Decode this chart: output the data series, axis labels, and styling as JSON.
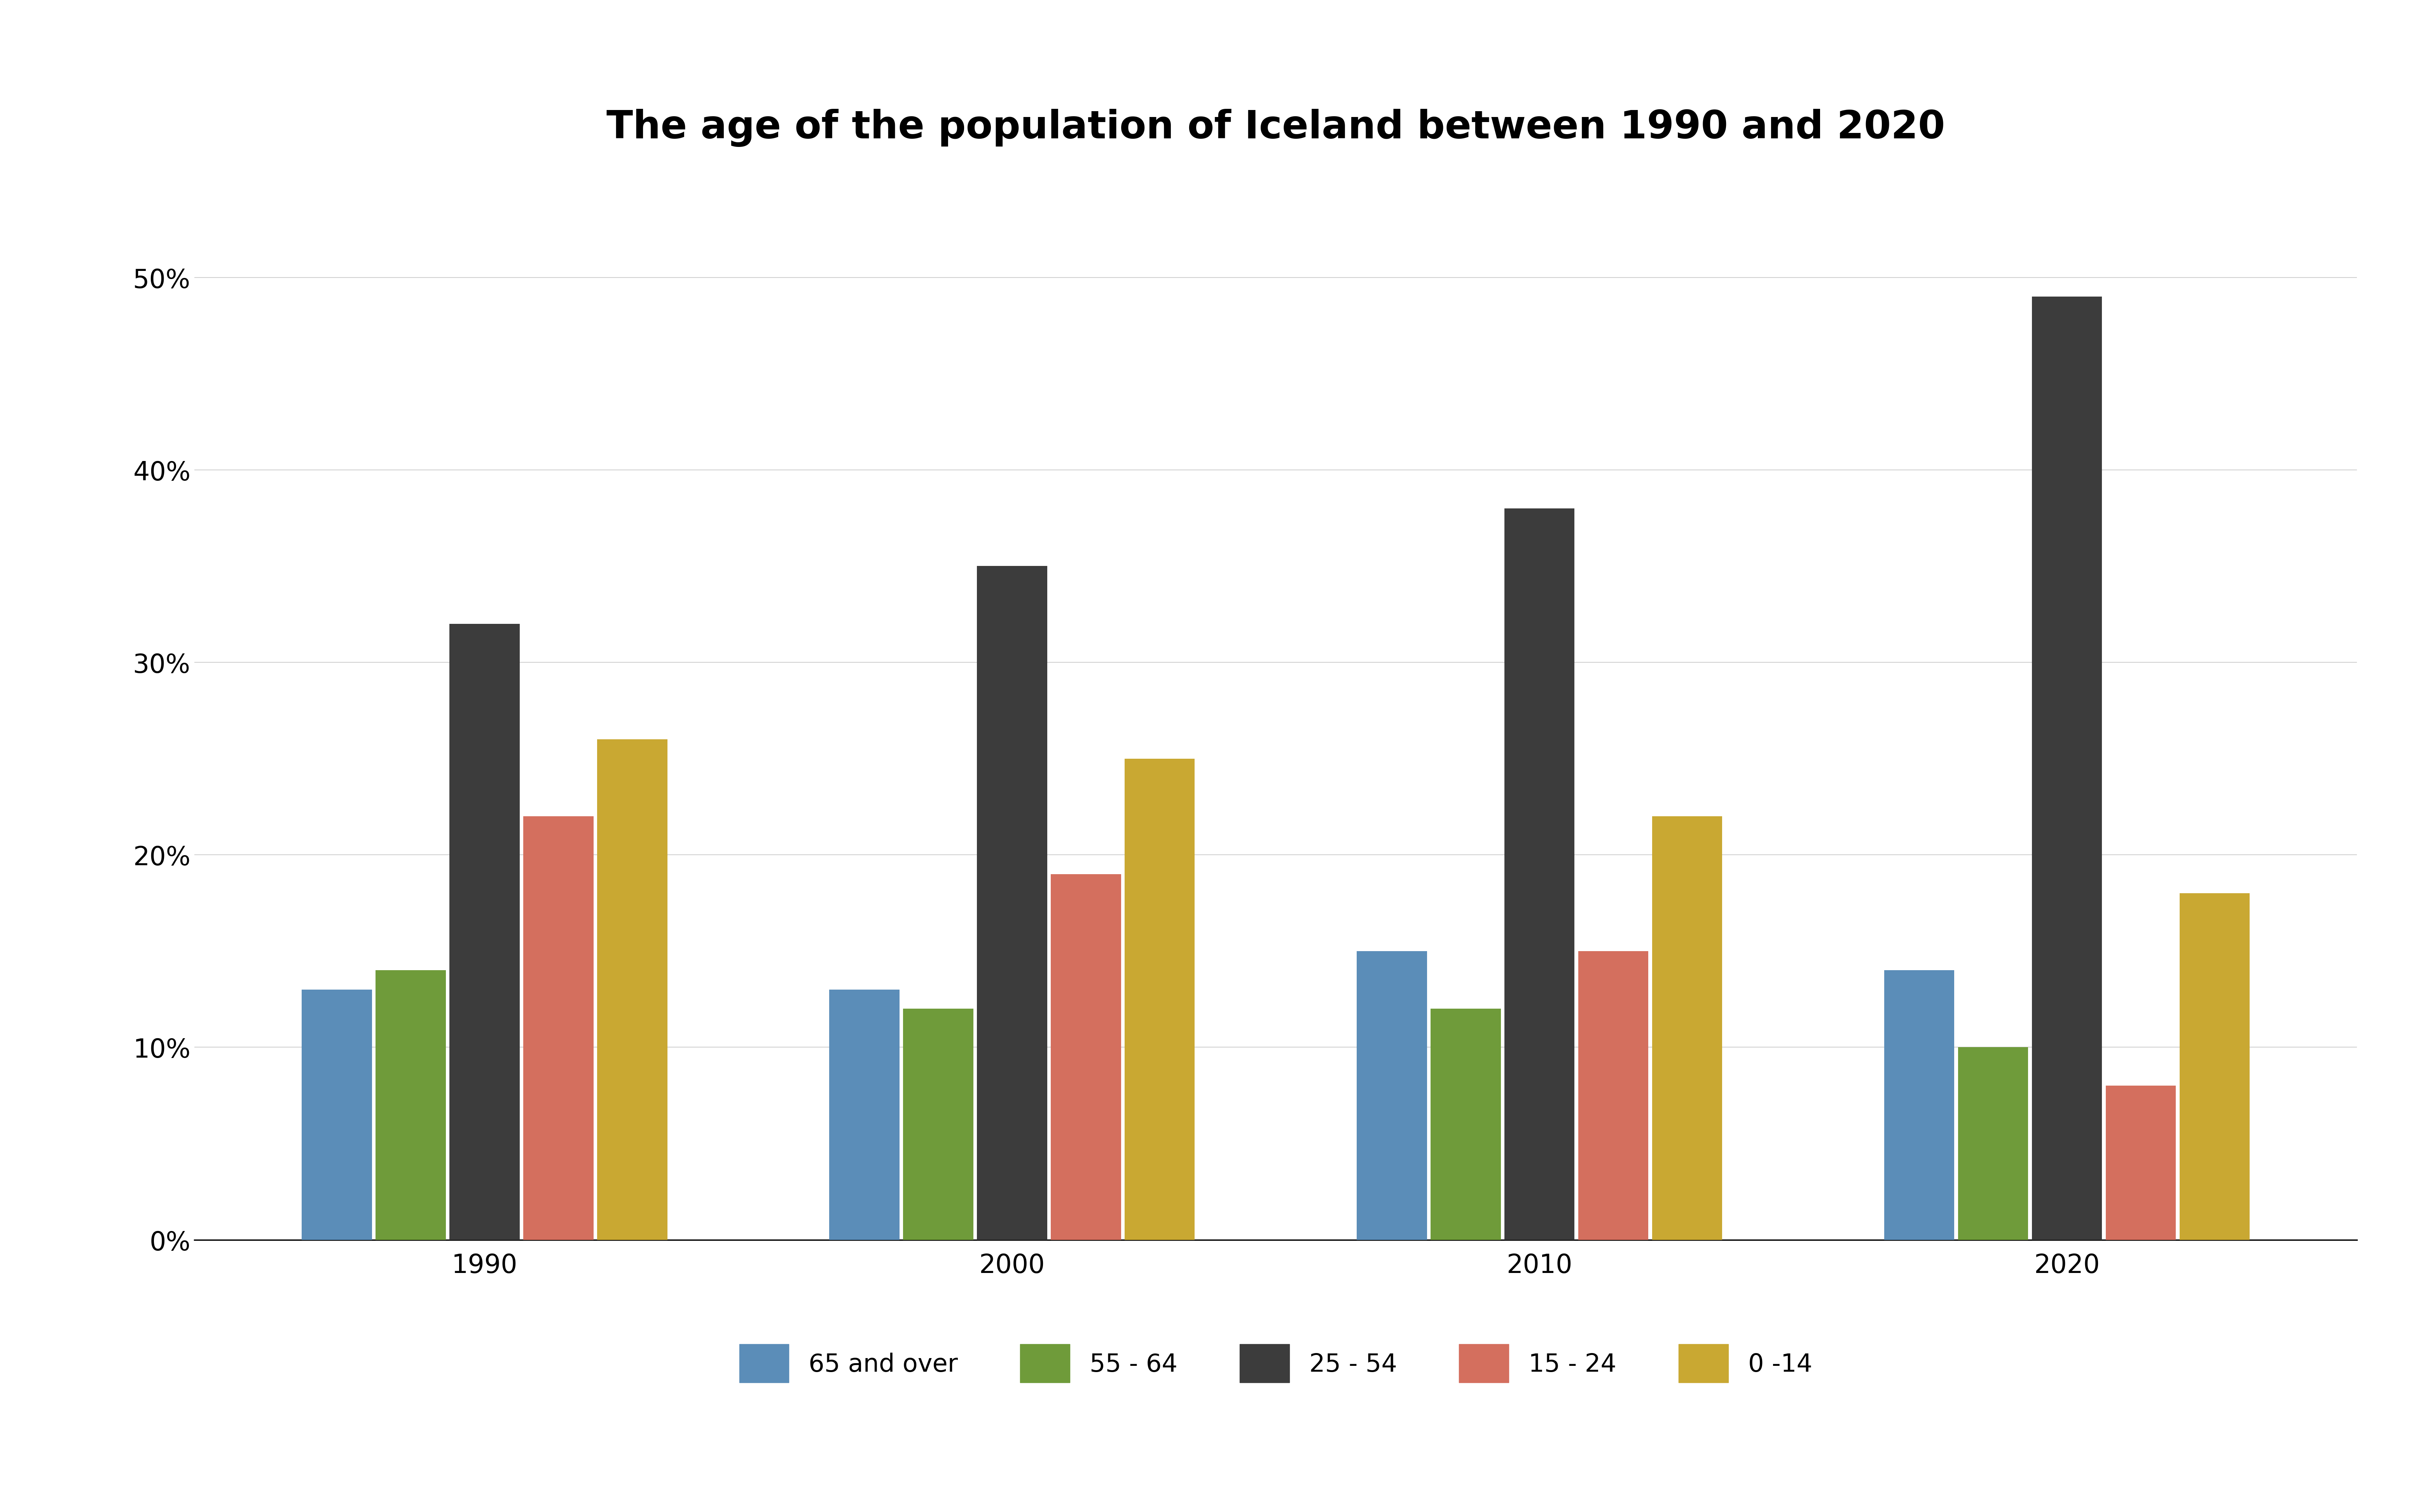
{
  "title": "The age of the population of Iceland between 1990 and 2020",
  "years": [
    1990,
    2000,
    2010,
    2020
  ],
  "categories": [
    "65 and over",
    "55 - 64",
    "25 - 54",
    "15 - 24",
    "0 -14"
  ],
  "colors": [
    "#5b8db8",
    "#6f9b3a",
    "#3c3c3c",
    "#d46f5e",
    "#c9a832"
  ],
  "values": {
    "65 and over": [
      13,
      13,
      15,
      14
    ],
    "55 - 64": [
      14,
      12,
      12,
      10
    ],
    "25 - 54": [
      32,
      35,
      38,
      49
    ],
    "15 - 24": [
      22,
      19,
      15,
      8
    ],
    "0 -14": [
      26,
      25,
      22,
      18
    ]
  },
  "ylim": [
    0,
    55
  ],
  "yticks": [
    0,
    10,
    20,
    30,
    40,
    50
  ],
  "ytick_labels": [
    "0%",
    "10%",
    "20%",
    "30%",
    "40%",
    "50%"
  ],
  "background_color": "#ffffff",
  "title_fontsize": 72,
  "tick_fontsize": 48,
  "legend_fontsize": 46,
  "bar_width": 0.14,
  "group_positions": [
    0,
    1,
    2,
    3
  ]
}
